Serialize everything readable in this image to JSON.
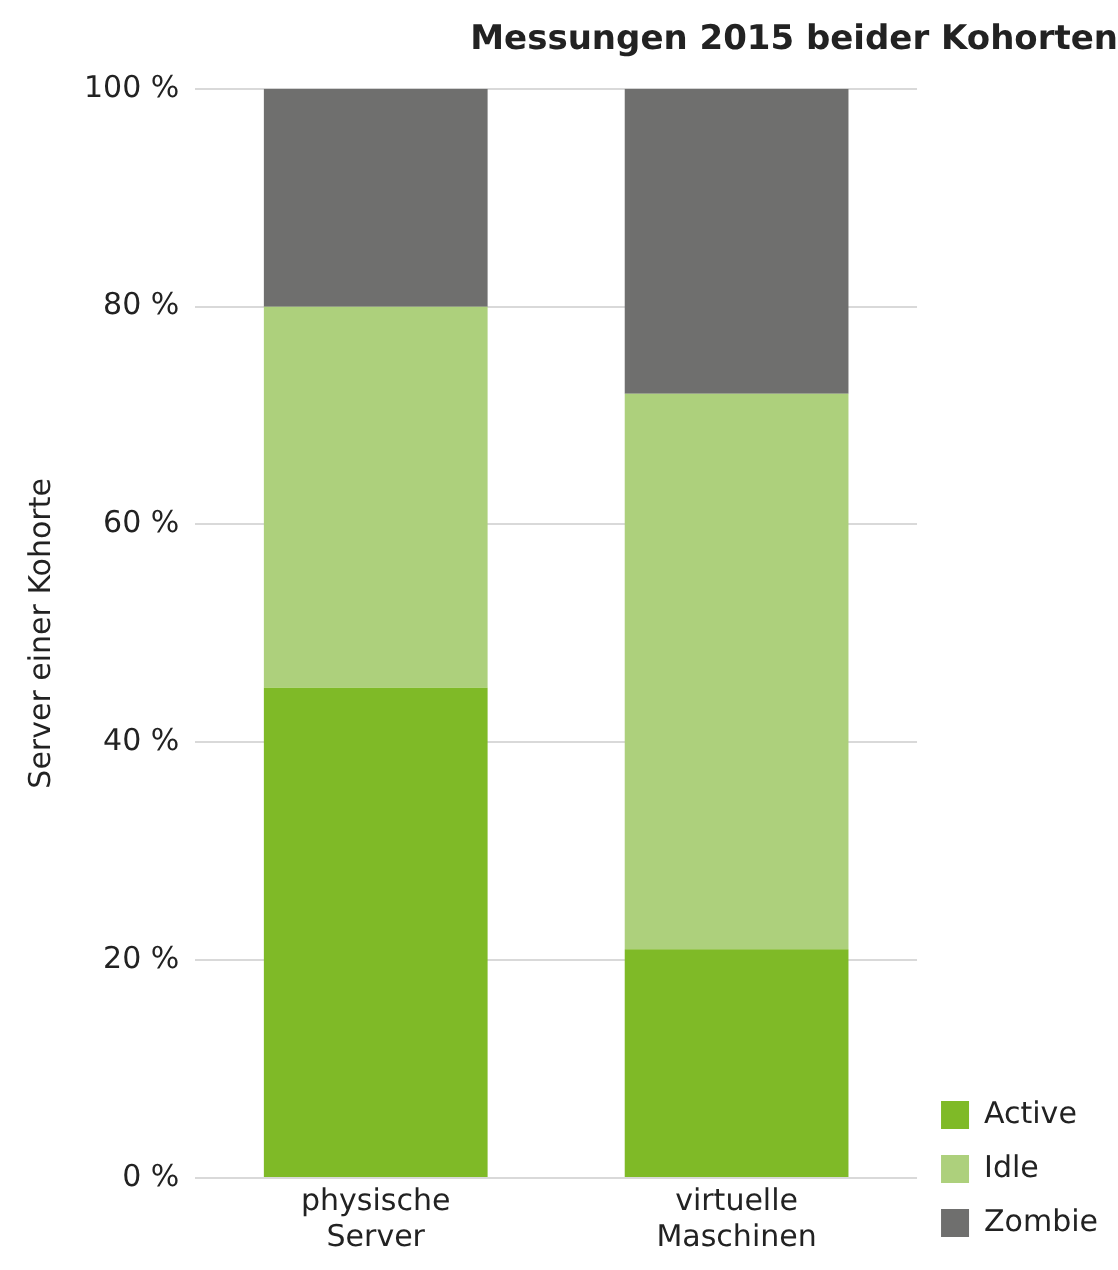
{
  "chart_data": {
    "type": "bar",
    "title": "Messungen 2015 beider Kohorten",
    "ylabel": "Server einer Kohorte",
    "categories": [
      "physische Server",
      "virtuelle Maschinen"
    ],
    "stacked": true,
    "ylim": [
      0,
      100
    ],
    "yticks": [
      {
        "value": 0,
        "label": "0 %"
      },
      {
        "value": 20,
        "label": "20 %"
      },
      {
        "value": 40,
        "label": "40 %"
      },
      {
        "value": 60,
        "label": "60 %"
      },
      {
        "value": 80,
        "label": "80 %"
      },
      {
        "value": 100,
        "label": "100 %"
      }
    ],
    "grid": "y",
    "legend": "bottom right",
    "series": [
      {
        "name": "Active",
        "color": "#7fba27",
        "values": [
          45,
          21
        ]
      },
      {
        "name": "Idle",
        "color": "#add07c",
        "values": [
          35,
          51
        ]
      },
      {
        "name": "Zombie",
        "color": "#6f6f6e",
        "values": [
          20,
          28
        ]
      }
    ]
  }
}
